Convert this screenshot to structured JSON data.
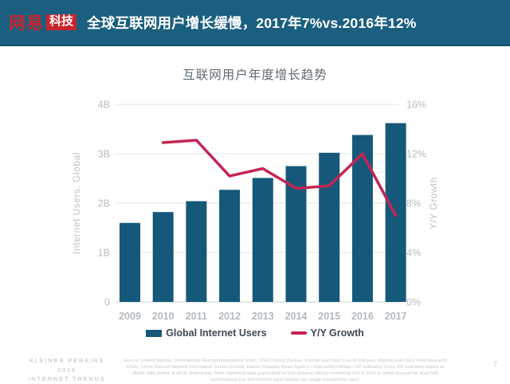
{
  "header": {
    "logo_brand": "网易",
    "logo_sub": "科技",
    "title": "全球互联网用户增长缓慢，2017年7%vs.2016年12%"
  },
  "chart_data": {
    "type": "bar",
    "title": "互联网用户年度增长趋势",
    "categories": [
      "2009",
      "2010",
      "2011",
      "2012",
      "2013",
      "2014",
      "2015",
      "2016",
      "2017"
    ],
    "series": [
      {
        "name": "Global Internet Users",
        "type": "bar",
        "axis": "left",
        "unit": "B",
        "color": "#15587a",
        "values": [
          1.6,
          1.82,
          2.04,
          2.27,
          2.51,
          2.75,
          3.02,
          3.38,
          3.62
        ]
      },
      {
        "name": "Y/Y Growth",
        "type": "line",
        "axis": "right",
        "unit": "%",
        "color": "#c32553",
        "values": [
          null,
          12.9,
          13.1,
          10.2,
          10.8,
          9.2,
          9.4,
          12.0,
          7.0
        ]
      }
    ],
    "left_axis": {
      "label": "Internet Users, Global",
      "ticks": [
        "0",
        "1B",
        "2B",
        "3B",
        "4B"
      ],
      "min": 0,
      "max": 4
    },
    "right_axis": {
      "label": "Y/Y Growth",
      "ticks": [
        "0%",
        "4%",
        "8%",
        "12%",
        "16%"
      ],
      "min": 0,
      "max": 16
    },
    "grid": true,
    "legend_position": "bottom"
  },
  "footer": {
    "brand_line1": "KLEINER PERKINS",
    "brand_line2": "2018",
    "brand_line3": "INTERNET TRENDS",
    "source": "Source: United Nations / International Telecommunications Union, USA Census Bureau. Internet user data is as of mid-year. Internet user data: Pew Research (USA), China Internet Network Information Center (China), Islamic Republic News Agency / InternetWorldStats / KP estimates (Iran), KP estimates based on IAMAI data (India), & APJII (Indonesia). Note: Historical data (particularly in Sub-Saharan Africa) revised by ITU in 2017 to better account for dual-SIM subscriptions (i.e. two Internet subscriptions per single smartphone user).",
    "page_number": "7"
  },
  "colors": {
    "header_bg": "#1b5f80",
    "brand_red": "#c9252e",
    "bar_blue": "#15587a",
    "line_crimson": "#c32553",
    "axis_gray": "#b7bdc2",
    "title_gray": "#5f6a73"
  }
}
